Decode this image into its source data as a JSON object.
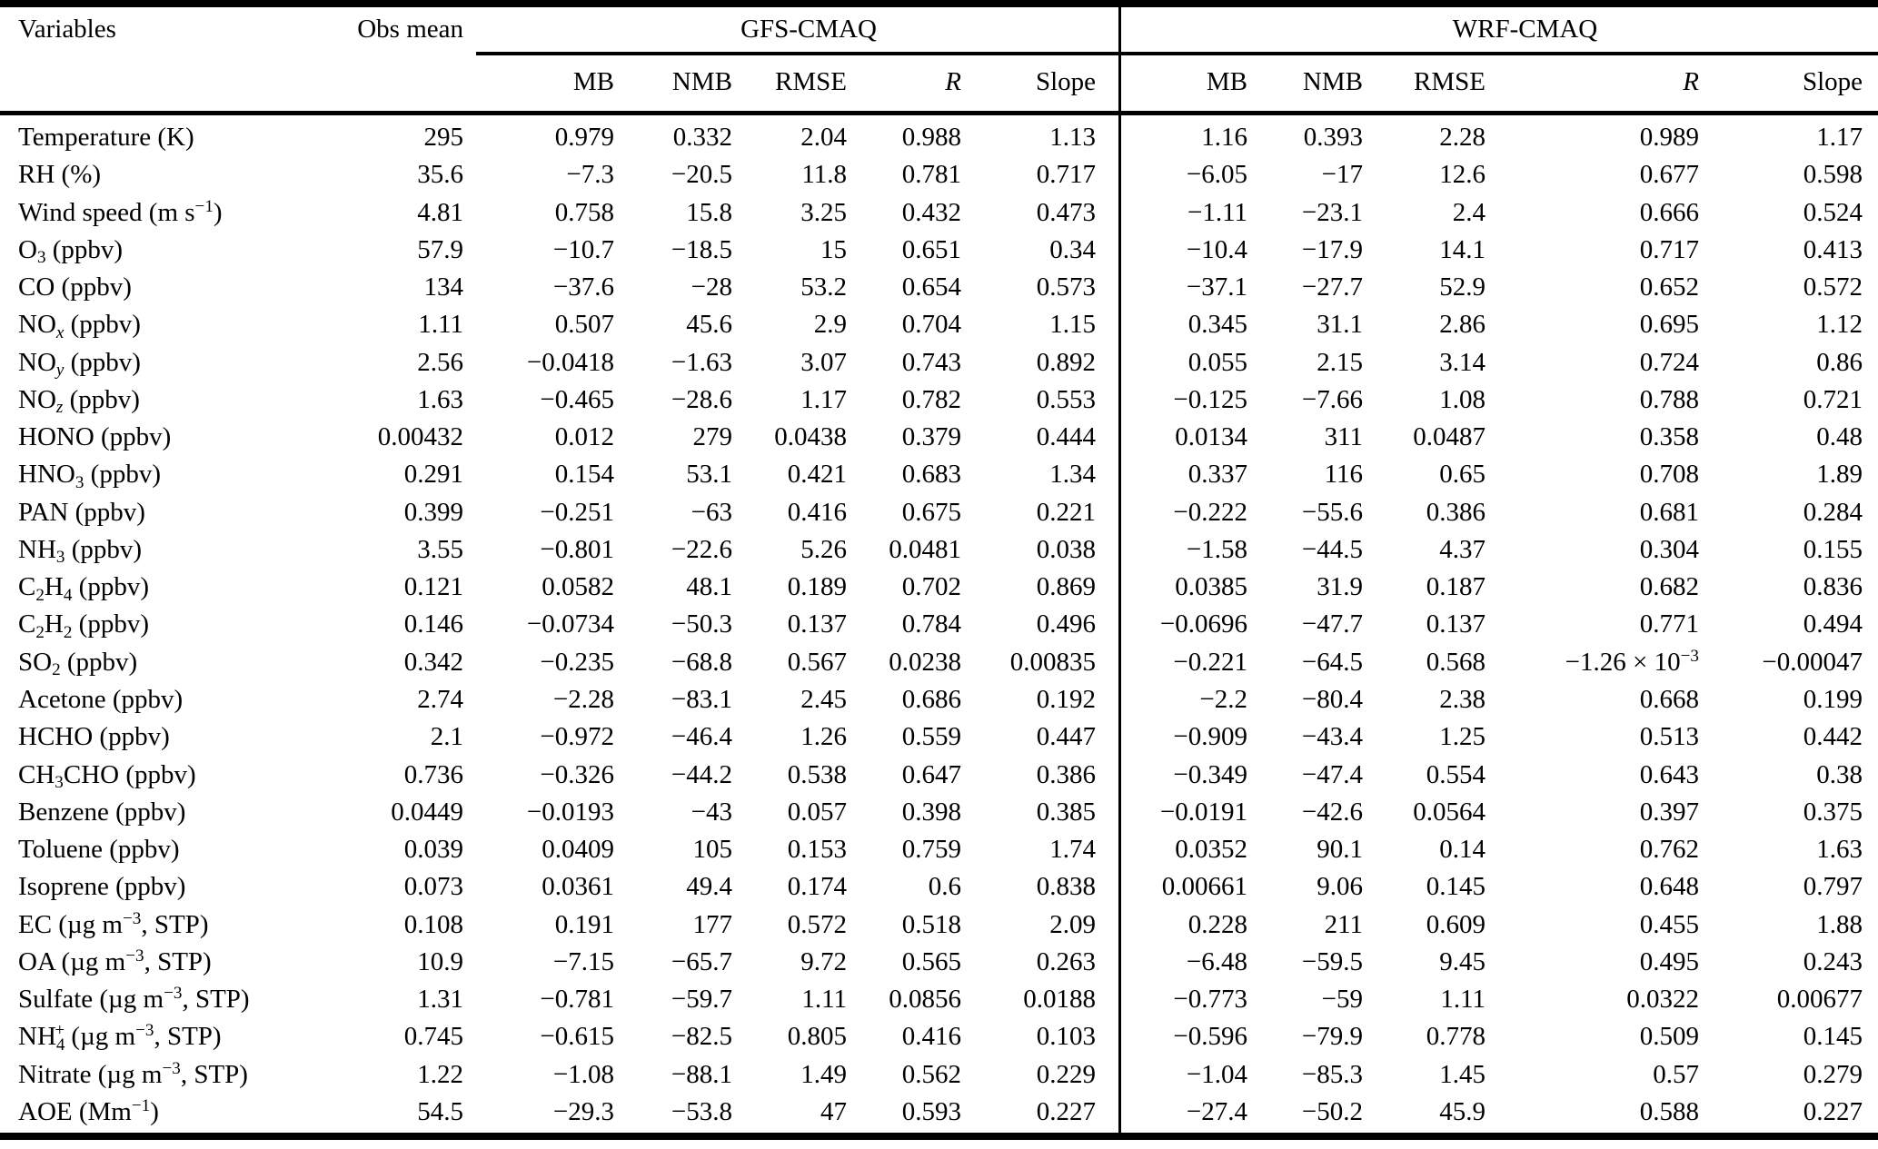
{
  "table": {
    "header": {
      "variables": "Variables",
      "obs_mean": "Obs mean",
      "gfs": "GFS-CMAQ",
      "wrf": "WRF-CMAQ"
    },
    "metrics": [
      "MB",
      "NMB",
      "RMSE",
      "R",
      "Slope"
    ],
    "rows": [
      {
        "variable": "Temperature (K)",
        "obs_mean": "295",
        "gfs": [
          "0.979",
          "0.332",
          "2.04",
          "0.988",
          "1.13"
        ],
        "wrf": [
          "1.16",
          "0.393",
          "2.28",
          "0.989",
          "1.17"
        ]
      },
      {
        "variable": "RH (%)",
        "obs_mean": "35.6",
        "gfs": [
          "−7.3",
          "−20.5",
          "11.8",
          "0.781",
          "0.717"
        ],
        "wrf": [
          "−6.05",
          "−17",
          "12.6",
          "0.677",
          "0.598"
        ]
      },
      {
        "variable": "Wind speed (m s^{−1})",
        "obs_mean": "4.81",
        "gfs": [
          "0.758",
          "15.8",
          "3.25",
          "0.432",
          "0.473"
        ],
        "wrf": [
          "−1.11",
          "−23.1",
          "2.4",
          "0.666",
          "0.524"
        ]
      },
      {
        "variable": "O_{3} (ppbv)",
        "obs_mean": "57.9",
        "gfs": [
          "−10.7",
          "−18.5",
          "15",
          "0.651",
          "0.34"
        ],
        "wrf": [
          "−10.4",
          "−17.9",
          "14.1",
          "0.717",
          "0.413"
        ]
      },
      {
        "variable": "CO (ppbv)",
        "obs_mean": "134",
        "gfs": [
          "−37.6",
          "−28",
          "53.2",
          "0.654",
          "0.573"
        ],
        "wrf": [
          "−37.1",
          "−27.7",
          "52.9",
          "0.652",
          "0.572"
        ]
      },
      {
        "variable": "NO_i{x} (ppbv)",
        "obs_mean": "1.11",
        "gfs": [
          "0.507",
          "45.6",
          "2.9",
          "0.704",
          "1.15"
        ],
        "wrf": [
          "0.345",
          "31.1",
          "2.86",
          "0.695",
          "1.12"
        ]
      },
      {
        "variable": "NO_i{y} (ppbv)",
        "obs_mean": "2.56",
        "gfs": [
          "−0.0418",
          "−1.63",
          "3.07",
          "0.743",
          "0.892"
        ],
        "wrf": [
          "0.055",
          "2.15",
          "3.14",
          "0.724",
          "0.86"
        ]
      },
      {
        "variable": "NO_i{z} (ppbv)",
        "obs_mean": "1.63",
        "gfs": [
          "−0.465",
          "−28.6",
          "1.17",
          "0.782",
          "0.553"
        ],
        "wrf": [
          "−0.125",
          "−7.66",
          "1.08",
          "0.788",
          "0.721"
        ]
      },
      {
        "variable": "HONO (ppbv)",
        "obs_mean": "0.00432",
        "gfs": [
          "0.012",
          "279",
          "0.0438",
          "0.379",
          "0.444"
        ],
        "wrf": [
          "0.0134",
          "311",
          "0.0487",
          "0.358",
          "0.48"
        ]
      },
      {
        "variable": "HNO_{3} (ppbv)",
        "obs_mean": "0.291",
        "gfs": [
          "0.154",
          "53.1",
          "0.421",
          "0.683",
          "1.34"
        ],
        "wrf": [
          "0.337",
          "116",
          "0.65",
          "0.708",
          "1.89"
        ]
      },
      {
        "variable": "PAN (ppbv)",
        "obs_mean": "0.399",
        "gfs": [
          "−0.251",
          "−63",
          "0.416",
          "0.675",
          "0.221"
        ],
        "wrf": [
          "−0.222",
          "−55.6",
          "0.386",
          "0.681",
          "0.284"
        ]
      },
      {
        "variable": "NH_{3} (ppbv)",
        "obs_mean": "3.55",
        "gfs": [
          "−0.801",
          "−22.6",
          "5.26",
          "0.0481",
          "0.038"
        ],
        "wrf": [
          "−1.58",
          "−44.5",
          "4.37",
          "0.304",
          "0.155"
        ]
      },
      {
        "variable": "C_{2}H_{4} (ppbv)",
        "obs_mean": "0.121",
        "gfs": [
          "0.0582",
          "48.1",
          "0.189",
          "0.702",
          "0.869"
        ],
        "wrf": [
          "0.0385",
          "31.9",
          "0.187",
          "0.682",
          "0.836"
        ]
      },
      {
        "variable": "C_{2}H_{2} (ppbv)",
        "obs_mean": "0.146",
        "gfs": [
          "−0.0734",
          "−50.3",
          "0.137",
          "0.784",
          "0.496"
        ],
        "wrf": [
          "−0.0696",
          "−47.7",
          "0.137",
          "0.771",
          "0.494"
        ]
      },
      {
        "variable": "SO_{2} (ppbv)",
        "obs_mean": "0.342",
        "gfs": [
          "−0.235",
          "−68.8",
          "0.567",
          "0.0238",
          "0.00835"
        ],
        "wrf": [
          "−0.221",
          "−64.5",
          "0.568",
          "−1.26 × 10^{−3}",
          "−0.00047"
        ]
      },
      {
        "variable": "Acetone (ppbv)",
        "obs_mean": "2.74",
        "gfs": [
          "−2.28",
          "−83.1",
          "2.45",
          "0.686",
          "0.192"
        ],
        "wrf": [
          "−2.2",
          "−80.4",
          "2.38",
          "0.668",
          "0.199"
        ]
      },
      {
        "variable": "HCHO (ppbv)",
        "obs_mean": "2.1",
        "gfs": [
          "−0.972",
          "−46.4",
          "1.26",
          "0.559",
          "0.447"
        ],
        "wrf": [
          "−0.909",
          "−43.4",
          "1.25",
          "0.513",
          "0.442"
        ]
      },
      {
        "variable": "CH_{3}CHO (ppbv)",
        "obs_mean": "0.736",
        "gfs": [
          "−0.326",
          "−44.2",
          "0.538",
          "0.647",
          "0.386"
        ],
        "wrf": [
          "−0.349",
          "−47.4",
          "0.554",
          "0.643",
          "0.38"
        ]
      },
      {
        "variable": "Benzene (ppbv)",
        "obs_mean": "0.0449",
        "gfs": [
          "−0.0193",
          "−43",
          "0.057",
          "0.398",
          "0.385"
        ],
        "wrf": [
          "−0.0191",
          "−42.6",
          "0.0564",
          "0.397",
          "0.375"
        ]
      },
      {
        "variable": "Toluene (ppbv)",
        "obs_mean": "0.039",
        "gfs": [
          "0.0409",
          "105",
          "0.153",
          "0.759",
          "1.74"
        ],
        "wrf": [
          "0.0352",
          "90.1",
          "0.14",
          "0.762",
          "1.63"
        ]
      },
      {
        "variable": "Isoprene (ppbv)",
        "obs_mean": "0.073",
        "gfs": [
          "0.0361",
          "49.4",
          "0.174",
          "0.6",
          "0.838"
        ],
        "wrf": [
          "0.00661",
          "9.06",
          "0.145",
          "0.648",
          "0.797"
        ]
      },
      {
        "variable": "EC (µg m^{−3}, STP)",
        "obs_mean": "0.108",
        "gfs": [
          "0.191",
          "177",
          "0.572",
          "0.518",
          "2.09"
        ],
        "wrf": [
          "0.228",
          "211",
          "0.609",
          "0.455",
          "1.88"
        ]
      },
      {
        "variable": "OA (µg m^{−3}, STP)",
        "obs_mean": "10.9",
        "gfs": [
          "−7.15",
          "−65.7",
          "9.72",
          "0.565",
          "0.263"
        ],
        "wrf": [
          "−6.48",
          "−59.5",
          "9.45",
          "0.495",
          "0.243"
        ]
      },
      {
        "variable": "Sulfate (µg m^{−3}, STP)",
        "obs_mean": "1.31",
        "gfs": [
          "−0.781",
          "−59.7",
          "1.11",
          "0.0856",
          "0.0188"
        ],
        "wrf": [
          "−0.773",
          "−59",
          "1.11",
          "0.0322",
          "0.00677"
        ]
      },
      {
        "variable": "NH_{4}^{+} (µg m^{−3}, STP)",
        "obs_mean": "0.745",
        "gfs": [
          "−0.615",
          "−82.5",
          "0.805",
          "0.416",
          "0.103"
        ],
        "wrf": [
          "−0.596",
          "−79.9",
          "0.778",
          "0.509",
          "0.145"
        ]
      },
      {
        "variable": "Nitrate (µg m^{−3}, STP)",
        "obs_mean": "1.22",
        "gfs": [
          "−1.08",
          "−88.1",
          "1.49",
          "0.562",
          "0.229"
        ],
        "wrf": [
          "−1.04",
          "−85.3",
          "1.45",
          "0.57",
          "0.279"
        ]
      },
      {
        "variable": "AOE (Mm^{−1})",
        "obs_mean": "54.5",
        "gfs": [
          "−29.3",
          "−53.8",
          "47",
          "0.593",
          "0.227"
        ],
        "wrf": [
          "−27.4",
          "−50.2",
          "45.9",
          "0.588",
          "0.227"
        ]
      }
    ]
  }
}
